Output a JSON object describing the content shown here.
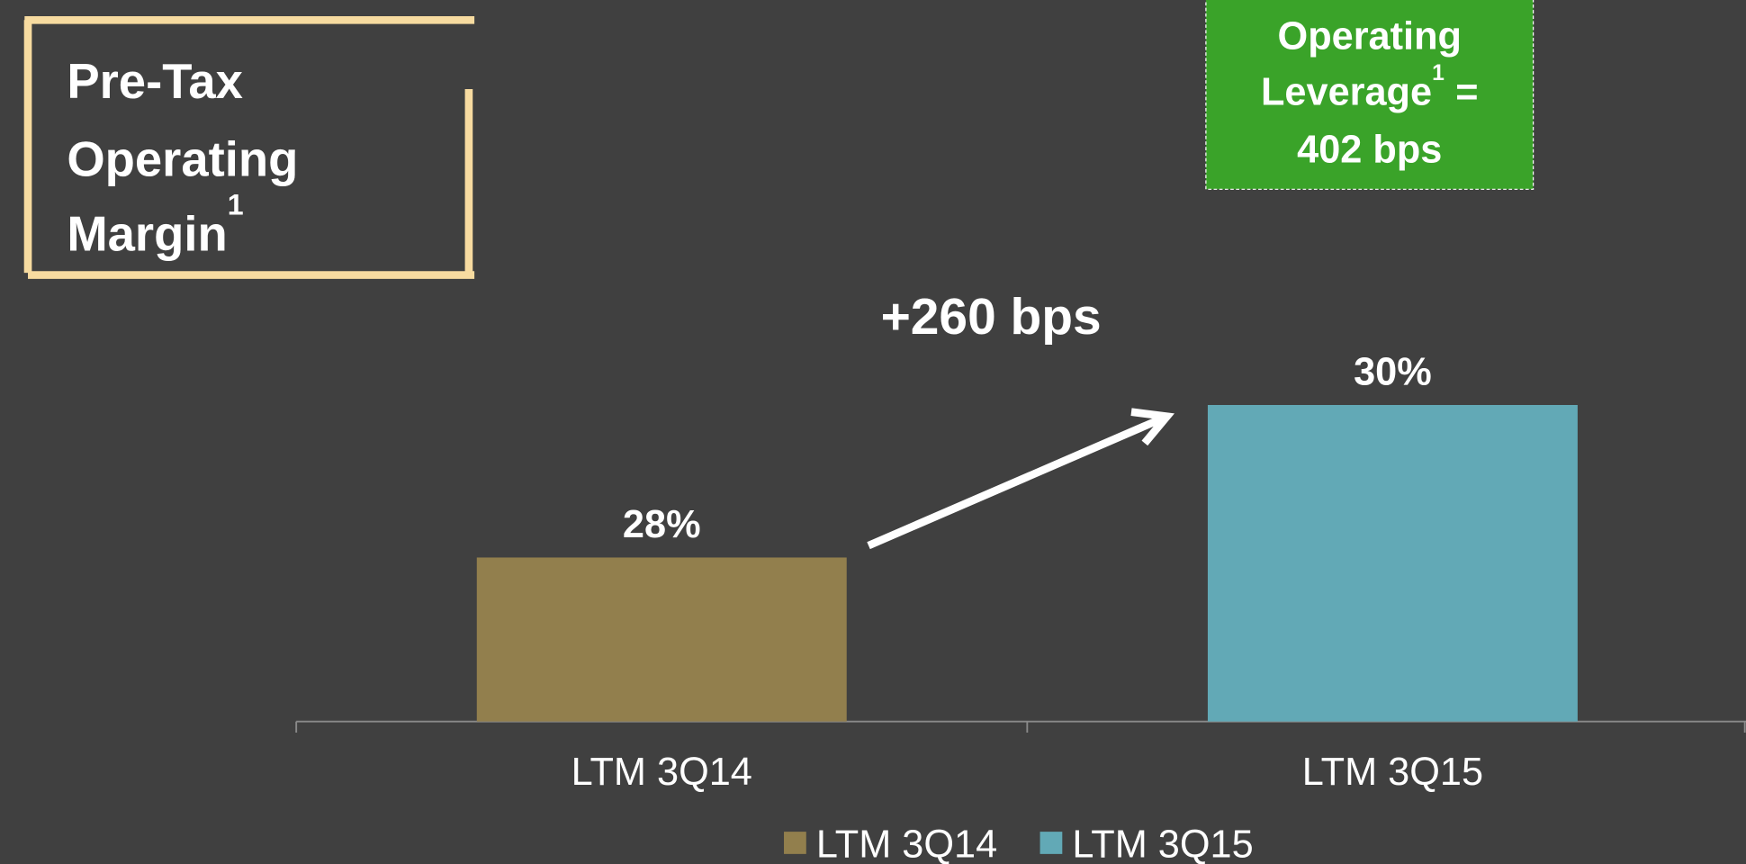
{
  "chart_data": {
    "type": "bar",
    "title_lines": [
      "Pre-Tax",
      "Operating",
      "Margin"
    ],
    "title_footnote": "1",
    "callout": {
      "lines": [
        "Operating",
        "Leverage",
        "=",
        "402 bps"
      ],
      "footnote": "1"
    },
    "annotation": "+260 bps",
    "categories": [
      "LTM 3Q14",
      "LTM 3Q15"
    ],
    "values": [
      28,
      30
    ],
    "value_labels": [
      "28%",
      "30%"
    ],
    "colors": [
      "#927f4d",
      "#62a9b6"
    ],
    "ylim": [
      25.85,
      31.5
    ],
    "legend": "bottom"
  }
}
